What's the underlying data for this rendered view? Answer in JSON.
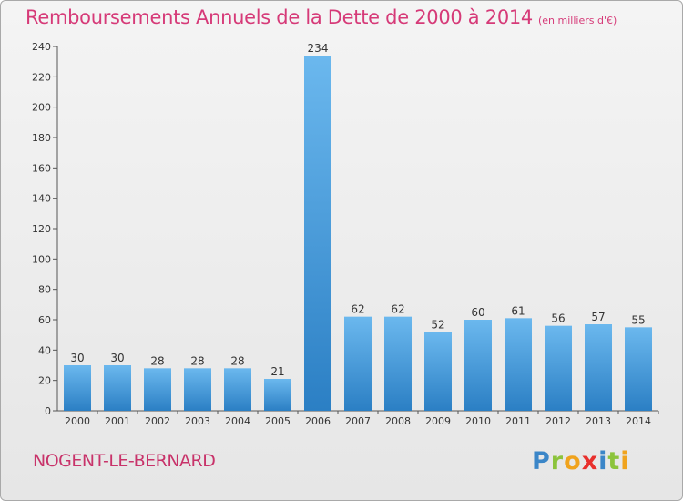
{
  "header": {
    "title": "Remboursements Annuels de la Dette de 2000 à 2014",
    "unit_note": "(en milliers d'€)"
  },
  "footer": {
    "commune": "NOGENT-LE-BERNARD",
    "brand": "Proxiti"
  },
  "brand_letters": [
    {
      "ch": "P",
      "color": "#3b86c8"
    },
    {
      "ch": "r",
      "color": "#8cc43c"
    },
    {
      "ch": "o",
      "color": "#f0a31d"
    },
    {
      "ch": "x",
      "color": "#e8302d"
    },
    {
      "ch": "i",
      "color": "#3b86c8"
    },
    {
      "ch": "t",
      "color": "#8cc43c"
    },
    {
      "ch": "i",
      "color": "#f0a31d"
    }
  ],
  "colors": {
    "title": "#d63a78",
    "bar_top": "#6bb8ee",
    "bar_bottom": "#2b7fc4"
  },
  "chart_data": {
    "type": "bar",
    "categories": [
      "2000",
      "2001",
      "2002",
      "2003",
      "2004",
      "2005",
      "2006",
      "2007",
      "2008",
      "2009",
      "2010",
      "2011",
      "2012",
      "2013",
      "2014"
    ],
    "values": [
      30,
      30,
      28,
      28,
      28,
      21,
      234,
      62,
      62,
      52,
      60,
      61,
      56,
      57,
      55
    ],
    "title": "Remboursements Annuels de la Dette de 2000 à 2014",
    "xlabel": "",
    "ylabel": "",
    "ylim": [
      0,
      240
    ],
    "yticks": [
      0,
      20,
      40,
      60,
      80,
      100,
      120,
      140,
      160,
      180,
      200,
      220,
      240
    ],
    "grid": false,
    "data_labels": true
  }
}
